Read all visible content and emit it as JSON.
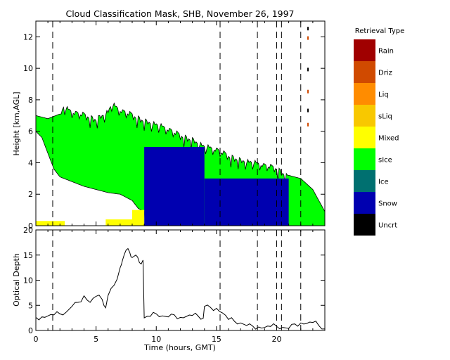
{
  "chart_data": [
    {
      "type": "heatmap",
      "title": "Cloud Classification Mask, SHB, November 26, 1997",
      "xlabel": "",
      "ylabel": "Height [km,AGL]",
      "xlim": [
        0,
        24
      ],
      "ylim": [
        0,
        13
      ],
      "yticks": [
        0,
        2,
        4,
        6,
        8,
        10,
        12
      ],
      "legend": {
        "title": "Retrieval Type",
        "placement": "right",
        "entries": [
          {
            "label": "Rain",
            "color": "#a00000"
          },
          {
            "label": "Driz",
            "color": "#d04a00"
          },
          {
            "label": "Liq",
            "color": "#ff8c00"
          },
          {
            "label": "sLiq",
            "color": "#f8c800"
          },
          {
            "label": "Mixed",
            "color": "#ffff00"
          },
          {
            "label": "sIce",
            "color": "#00ff00"
          },
          {
            "label": "Ice",
            "color": "#007070"
          },
          {
            "label": "Snow",
            "color": "#0000b0"
          },
          {
            "label": "Uncrt",
            "color": "#000000"
          }
        ]
      },
      "cloud_top": [
        [
          0,
          7.0
        ],
        [
          1,
          6.8
        ],
        [
          2,
          7.1
        ],
        [
          2.3,
          7.7
        ],
        [
          3,
          7.4
        ],
        [
          4,
          7.2
        ],
        [
          5,
          6.9
        ],
        [
          6,
          7.4
        ],
        [
          6.3,
          7.9
        ],
        [
          7,
          7.5
        ],
        [
          8,
          7.2
        ],
        [
          9,
          6.8
        ],
        [
          10,
          6.6
        ],
        [
          11,
          6.3
        ],
        [
          12,
          5.9
        ],
        [
          13,
          5.6
        ],
        [
          14,
          5.2
        ],
        [
          15,
          5.0
        ],
        [
          16,
          4.6
        ],
        [
          17,
          4.3
        ],
        [
          18,
          4.2
        ],
        [
          19,
          4.0
        ],
        [
          20,
          3.8
        ],
        [
          21,
          3.2
        ],
        [
          22,
          3.0
        ],
        [
          23,
          2.3
        ],
        [
          24,
          0.9
        ]
      ],
      "cloud_base": [
        [
          0,
          6.0
        ],
        [
          0.5,
          5.6
        ],
        [
          1,
          4.6
        ],
        [
          1.5,
          3.6
        ],
        [
          2,
          3.1
        ],
        [
          3,
          2.8
        ],
        [
          4,
          2.5
        ],
        [
          5,
          2.3
        ],
        [
          6,
          2.1
        ],
        [
          7,
          2.0
        ],
        [
          8,
          1.6
        ],
        [
          8.5,
          1.1
        ],
        [
          9,
          0.9
        ]
      ],
      "regions": [
        {
          "class": "Snow",
          "x": [
            9,
            14
          ],
          "y": [
            0,
            5
          ]
        },
        {
          "class": "Snow",
          "x": [
            14,
            21
          ],
          "y": [
            0,
            3
          ]
        },
        {
          "class": "Mixed",
          "x": [
            8.0,
            9.0
          ],
          "y": [
            0,
            1
          ]
        },
        {
          "class": "Mixed",
          "x": [
            0,
            2.4
          ],
          "y": [
            0,
            0.3
          ]
        },
        {
          "class": "Mixed",
          "x": [
            5.8,
            8.0
          ],
          "y": [
            0,
            0.4
          ]
        }
      ],
      "vlines": [
        1.4,
        15.3,
        18.4,
        20.0,
        20.4,
        22.0
      ]
    },
    {
      "type": "line",
      "title": "",
      "xlabel": "Time (hours, GMT)",
      "ylabel": "Optical Depth",
      "xlim": [
        0,
        24
      ],
      "ylim": [
        0,
        20
      ],
      "xticks": [
        0,
        5,
        10,
        15,
        20
      ],
      "yticks": [
        0,
        5,
        10,
        15,
        20
      ],
      "series": [
        {
          "x": [
            0,
            0.5,
            1,
            1.5,
            2,
            2.5,
            3,
            3.5,
            4,
            4.5,
            5,
            5.5,
            5.8,
            6,
            6.5,
            7,
            7.2,
            7.5,
            7.8,
            8,
            8.3,
            8.6,
            8.9,
            9.0,
            9.5,
            10,
            10.5,
            11,
            11.5,
            12,
            12.5,
            13,
            13.5,
            13.9,
            14,
            14.5,
            15,
            15.5,
            16,
            16.5,
            17,
            17.5,
            18,
            18.5,
            19,
            19.5,
            20,
            20.5,
            21,
            21.5,
            22,
            22.5,
            23,
            23.5,
            24
          ],
          "y": [
            2.6,
            2.7,
            2.9,
            3.1,
            3.3,
            3.6,
            4.8,
            5.6,
            6.9,
            5.6,
            6.8,
            6.2,
            4.5,
            7.0,
            9.0,
            12.5,
            14.0,
            16.0,
            15.5,
            14.5,
            15.0,
            13.5,
            14.0,
            2.5,
            2.8,
            3.3,
            2.9,
            2.7,
            3.1,
            2.6,
            2.8,
            3.0,
            2.8,
            2.4,
            4.8,
            4.6,
            4.4,
            3.5,
            2.2,
            1.8,
            1.5,
            1.0,
            0.9,
            0.7,
            0.6,
            0.8,
            0.8,
            0.6,
            0.4,
            1.3,
            1.5,
            1.4,
            1.6,
            1.0,
            0.3
          ]
        }
      ],
      "vlines": [
        1.4,
        15.3,
        18.4,
        20.0,
        20.4,
        22.0
      ]
    }
  ]
}
